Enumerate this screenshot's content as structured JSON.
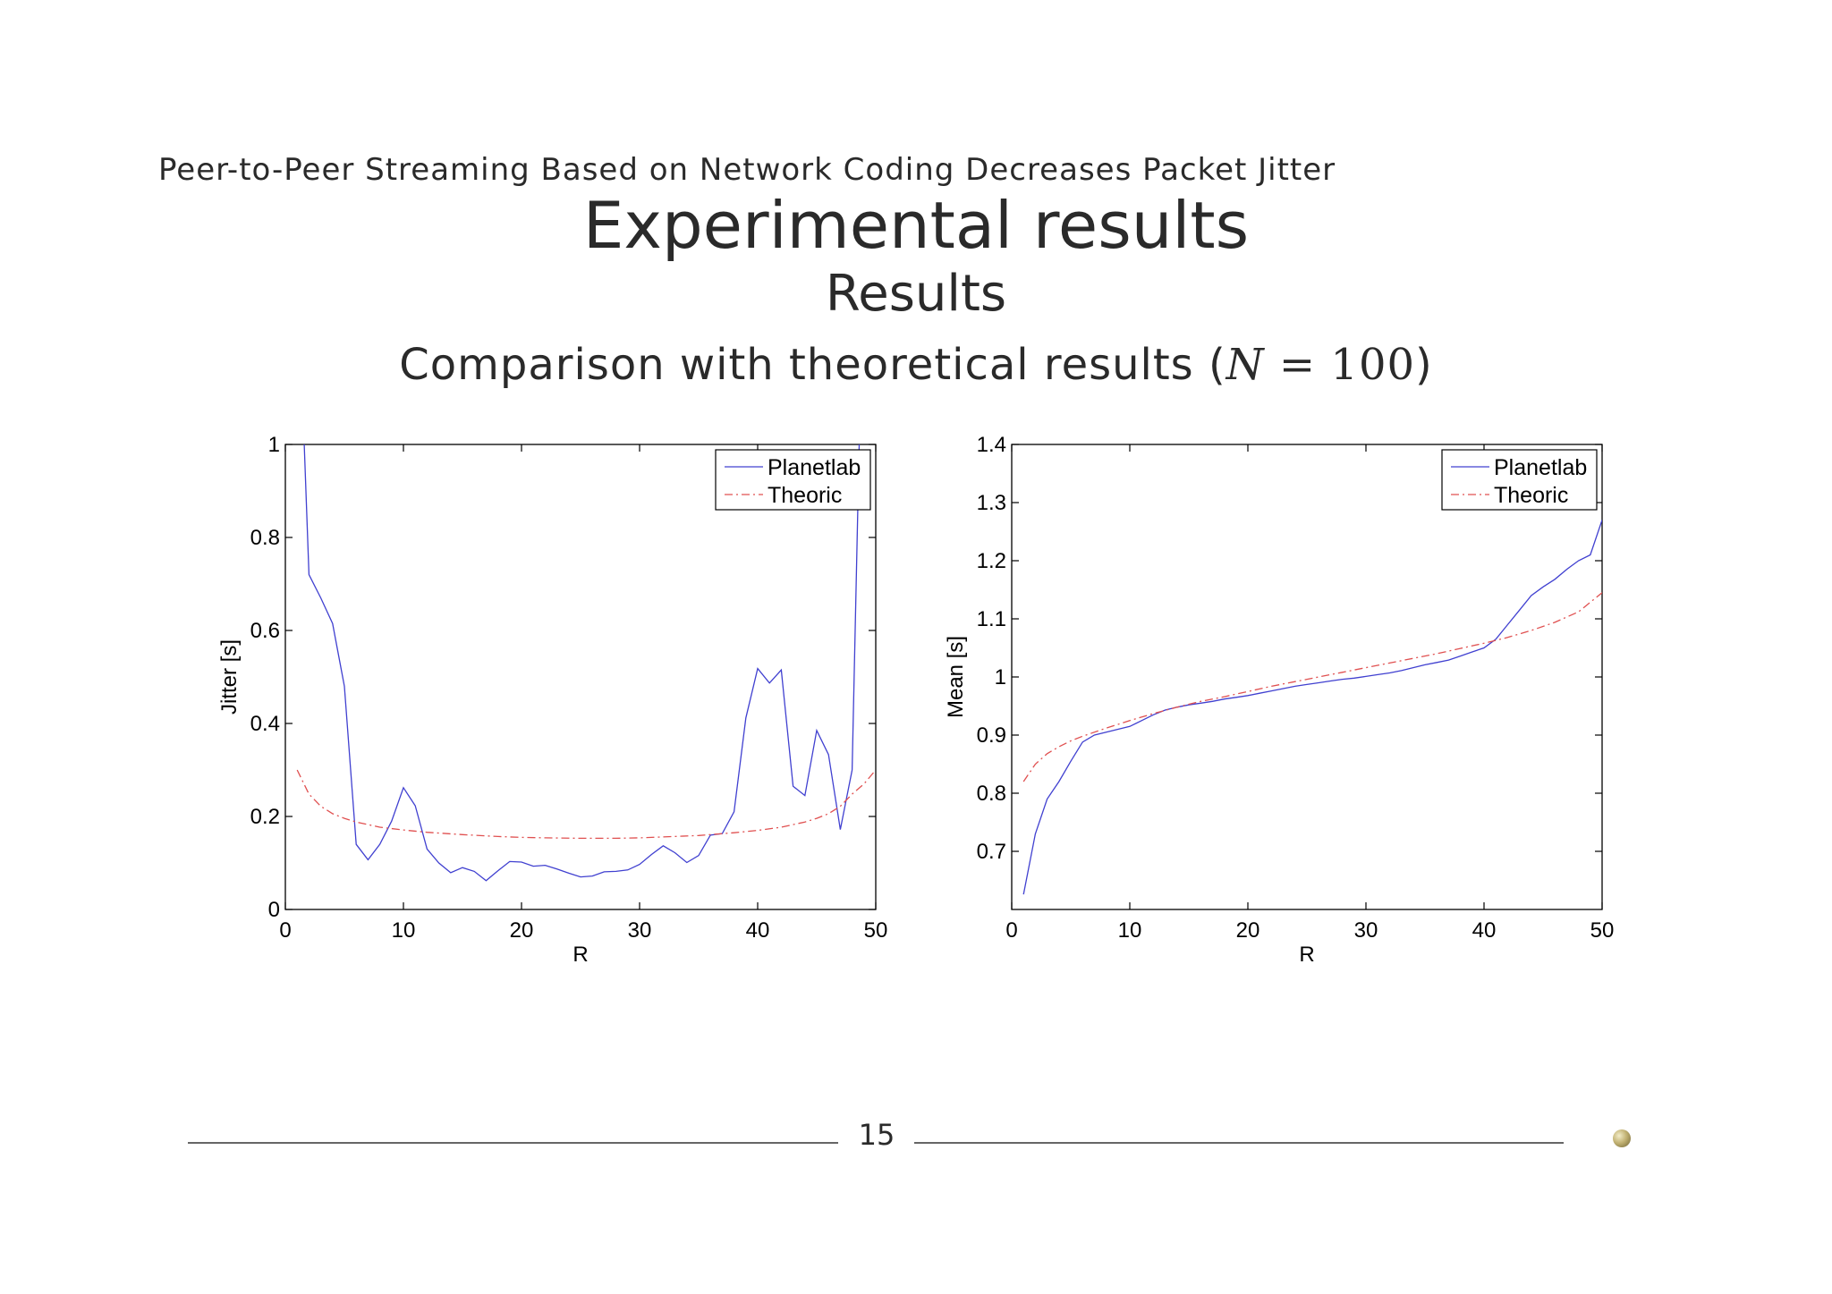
{
  "slide": {
    "header": "Peer-to-Peer Streaming Based on Network Coding Decreases Packet Jitter",
    "title": "Experimental results",
    "subtitle": "Results",
    "frame_title_text": "Comparison with theoretical results (",
    "frame_title_math_var": "N",
    "frame_title_math_eq": " = 100",
    "frame_title_close": ")",
    "page_number": "15"
  },
  "colors": {
    "planetlab": "#4040d0",
    "theoric": "#e05050",
    "axis": "#000000",
    "text": "#2a2a2a"
  },
  "chart_data": [
    {
      "type": "line",
      "xlabel": "R",
      "ylabel": "Jitter [s]",
      "xlim": [
        0,
        50
      ],
      "ylim": [
        0,
        1
      ],
      "xticks": [
        0,
        10,
        20,
        30,
        40,
        50
      ],
      "xtick_labels": [
        "0",
        "10",
        "20",
        "30",
        "40",
        "50"
      ],
      "yticks": [
        0,
        0.2,
        0.4,
        0.6,
        0.8,
        1
      ],
      "ytick_labels": [
        "0",
        "0.2",
        "0.4",
        "0.6",
        "0.8",
        "1"
      ],
      "legend_position": "top-right",
      "grid": false,
      "series": [
        {
          "name": "Planetlab",
          "style": "solid",
          "x": [
            1.6,
            2,
            3,
            4,
            5,
            6,
            7,
            8,
            9,
            10,
            11,
            12,
            13,
            14,
            15,
            16,
            17,
            18,
            19,
            20,
            21,
            22,
            23,
            24,
            25,
            26,
            27,
            28,
            29,
            30,
            31,
            32,
            33,
            34,
            35,
            36,
            37,
            38,
            39,
            40,
            41,
            42,
            43,
            44,
            45,
            46,
            47,
            48,
            48.6
          ],
          "y": [
            1.0,
            0.72,
            0.67,
            0.615,
            0.48,
            0.14,
            0.107,
            0.14,
            0.19,
            0.262,
            0.223,
            0.13,
            0.1,
            0.079,
            0.09,
            0.082,
            0.062,
            0.083,
            0.103,
            0.102,
            0.093,
            0.095,
            0.087,
            0.078,
            0.07,
            0.072,
            0.081,
            0.082,
            0.085,
            0.097,
            0.118,
            0.137,
            0.122,
            0.101,
            0.116,
            0.16,
            0.163,
            0.21,
            0.412,
            0.518,
            0.487,
            0.515,
            0.265,
            0.245,
            0.385,
            0.333,
            0.172,
            0.3,
            1.0
          ]
        },
        {
          "name": "Theoric",
          "style": "dashdot",
          "x": [
            1,
            2,
            3,
            4,
            5,
            6,
            8,
            10,
            12,
            15,
            18,
            20,
            22,
            25,
            28,
            30,
            32,
            35,
            38,
            40,
            42,
            44,
            45,
            46,
            47,
            48,
            49,
            50
          ],
          "y": [
            0.3,
            0.248,
            0.222,
            0.206,
            0.196,
            0.188,
            0.177,
            0.171,
            0.166,
            0.161,
            0.157,
            0.155,
            0.154,
            0.153,
            0.153,
            0.154,
            0.156,
            0.159,
            0.165,
            0.17,
            0.177,
            0.188,
            0.196,
            0.206,
            0.222,
            0.248,
            0.27,
            0.3
          ]
        }
      ]
    },
    {
      "type": "line",
      "xlabel": "R",
      "ylabel": "Mean [s]",
      "xlim": [
        0,
        50
      ],
      "ylim": [
        0.6,
        1.4
      ],
      "xticks": [
        0,
        10,
        20,
        30,
        40,
        50
      ],
      "xtick_labels": [
        "0",
        "10",
        "20",
        "30",
        "40",
        "50"
      ],
      "yticks": [
        0.7,
        0.8,
        0.9,
        1.0,
        1.1,
        1.2,
        1.3,
        1.4
      ],
      "ytick_labels": [
        "0.7",
        "0.8",
        "0.9",
        "1",
        "1.1",
        "1.2",
        "1.3",
        "1.4"
      ],
      "legend_position": "top-right",
      "grid": false,
      "series": [
        {
          "name": "Planetlab",
          "style": "solid",
          "x": [
            1,
            2,
            3,
            4,
            5,
            6,
            7,
            8,
            9,
            10,
            11,
            12,
            13,
            14,
            15,
            16,
            17,
            18,
            19,
            20,
            21,
            22,
            23,
            24,
            25,
            26,
            27,
            28,
            29,
            30,
            31,
            32,
            33,
            34,
            35,
            36,
            37,
            38,
            39,
            40,
            41,
            42,
            43,
            44,
            45,
            46,
            47,
            48,
            49,
            50
          ],
          "y": [
            0.626,
            0.73,
            0.79,
            0.82,
            0.855,
            0.888,
            0.9,
            0.905,
            0.91,
            0.915,
            0.925,
            0.935,
            0.943,
            0.948,
            0.952,
            0.955,
            0.958,
            0.962,
            0.965,
            0.968,
            0.972,
            0.976,
            0.98,
            0.984,
            0.987,
            0.99,
            0.993,
            0.996,
            0.998,
            1.001,
            1.004,
            1.007,
            1.011,
            1.016,
            1.021,
            1.025,
            1.029,
            1.036,
            1.043,
            1.05,
            1.065,
            1.09,
            1.115,
            1.14,
            1.155,
            1.168,
            1.185,
            1.2,
            1.21,
            1.27
          ]
        },
        {
          "name": "Theoric",
          "style": "dashdot",
          "x": [
            1,
            2,
            3,
            4,
            5,
            6,
            8,
            10,
            12,
            14,
            16,
            18,
            20,
            22,
            24,
            26,
            28,
            30,
            32,
            34,
            36,
            38,
            40,
            42,
            44,
            46,
            48,
            50
          ],
          "y": [
            0.82,
            0.85,
            0.868,
            0.88,
            0.89,
            0.898,
            0.912,
            0.925,
            0.937,
            0.948,
            0.958,
            0.966,
            0.975,
            0.984,
            0.992,
            1.0,
            1.008,
            1.016,
            1.024,
            1.032,
            1.04,
            1.049,
            1.058,
            1.068,
            1.08,
            1.094,
            1.112,
            1.145
          ]
        }
      ]
    }
  ]
}
